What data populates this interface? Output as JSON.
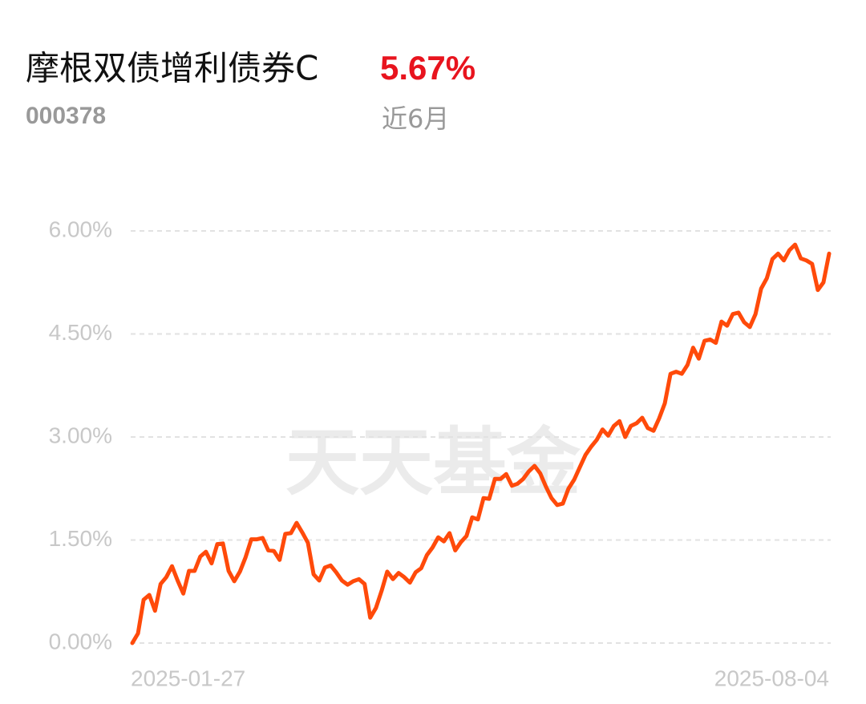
{
  "title": "摩根双债增利债券C",
  "return": "5.67%",
  "code": "000378",
  "period": "近6月",
  "chart_data": {
    "type": "line",
    "watermark": "天天基金",
    "categories": [
      "2025-01-27",
      null,
      null,
      null,
      null,
      null,
      null,
      null,
      null,
      null,
      null,
      null,
      null,
      null,
      null,
      null,
      null,
      null,
      null,
      null,
      null,
      null,
      null,
      null,
      null,
      null,
      null,
      null,
      null,
      null,
      null,
      null,
      null,
      null,
      null,
      null,
      null,
      null,
      null,
      null,
      null,
      null,
      null,
      null,
      null,
      null,
      null,
      null,
      null,
      null,
      null,
      null,
      null,
      null,
      null,
      null,
      null,
      null,
      null,
      null,
      null,
      null,
      null,
      null,
      null,
      null,
      null,
      null,
      null,
      null,
      null,
      null,
      null,
      null,
      null,
      null,
      null,
      null,
      null,
      null,
      null,
      null,
      null,
      null,
      null,
      null,
      null,
      null,
      null,
      null,
      null,
      null,
      null,
      null,
      null,
      null,
      null,
      null,
      null,
      null,
      null,
      null,
      null,
      null,
      null,
      null,
      null,
      null,
      null,
      null,
      null,
      null,
      null,
      null,
      null,
      null,
      null,
      null,
      null,
      null,
      null,
      null,
      null,
      "2025-08-04"
    ],
    "series": [
      {
        "color": "#ff4a0a",
        "values": [
          0,
          0.14,
          0.63,
          0.7,
          0.47,
          0.86,
          0.96,
          1.12,
          0.91,
          0.72,
          1.05,
          1.05,
          1.26,
          1.33,
          1.16,
          1.44,
          1.45,
          1.05,
          0.9,
          1.04,
          1.25,
          1.51,
          1.51,
          1.53,
          1.35,
          1.34,
          1.21,
          1.59,
          1.6,
          1.75,
          1.61,
          1.46,
          1.0,
          0.91,
          1.1,
          1.13,
          1.03,
          0.91,
          0.85,
          0.9,
          0.93,
          0.86,
          0.37,
          0.51,
          0.76,
          1.04,
          0.93,
          1.02,
          0.96,
          0.88,
          1.03,
          1.09,
          1.28,
          1.39,
          1.54,
          1.48,
          1.6,
          1.35,
          1.47,
          1.56,
          1.83,
          1.8,
          2.11,
          2.1,
          2.39,
          2.39,
          2.46,
          2.29,
          2.32,
          2.39,
          2.5,
          2.58,
          2.47,
          2.28,
          2.11,
          2.01,
          2.03,
          2.25,
          2.38,
          2.56,
          2.74,
          2.86,
          2.96,
          3.11,
          3.02,
          3.16,
          3.23,
          3.0,
          3.16,
          3.2,
          3.28,
          3.13,
          3.09,
          3.27,
          3.49,
          3.92,
          3.95,
          3.92,
          4.05,
          4.3,
          4.14,
          4.4,
          4.42,
          4.37,
          4.68,
          4.62,
          4.79,
          4.81,
          4.67,
          4.6,
          4.79,
          5.16,
          5.31,
          5.59,
          5.67,
          5.57,
          5.72,
          5.8,
          5.6,
          5.57,
          5.52,
          5.14,
          5.25,
          5.67
        ]
      }
    ],
    "ylim": [
      0,
      6
    ],
    "yticks": [
      {
        "value": 0,
        "label": "0.00%"
      },
      {
        "value": 1.5,
        "label": "1.50%"
      },
      {
        "value": 3,
        "label": "3.00%"
      },
      {
        "value": 4.5,
        "label": "4.50%"
      },
      {
        "value": 6,
        "label": "6.00%"
      }
    ],
    "grid": true
  }
}
